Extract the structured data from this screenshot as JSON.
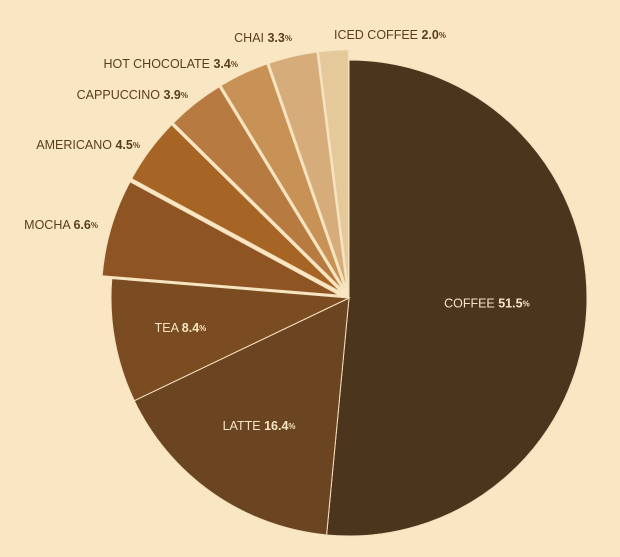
{
  "chart_data": {
    "type": "pie",
    "title": "",
    "slices": [
      {
        "label": "COFFEE",
        "value": 51.5,
        "color": "#4b351d",
        "label_color": "#f4e4c4"
      },
      {
        "label": "LATTE",
        "value": 16.4,
        "color": "#6b4521",
        "label_color": "#f4e4c4"
      },
      {
        "label": "TEA",
        "value": 8.4,
        "color": "#7b4c22",
        "label_color": "#f4e4c4"
      },
      {
        "label": "MOCHA",
        "value": 6.6,
        "color": "#8e5423",
        "label_color": "#5a3d1e"
      },
      {
        "label": "AMERICANO",
        "value": 4.5,
        "color": "#a66525",
        "label_color": "#5a3d1e"
      },
      {
        "label": "CAPPUCCINO",
        "value": 3.9,
        "color": "#b77a40",
        "label_color": "#5a3d1e"
      },
      {
        "label": "HOT CHOCOLATE",
        "value": 3.4,
        "color": "#c89155",
        "label_color": "#5a3d1e"
      },
      {
        "label": "CHAI",
        "value": 3.3,
        "color": "#d6ad7a",
        "label_color": "#5a3d1e"
      },
      {
        "label": "ICED COFFEE",
        "value": 2.0,
        "color": "#e6c99a",
        "label_color": "#5a3d1e"
      }
    ],
    "unit": "%",
    "legend": "none",
    "background": "#f9e7c3"
  }
}
